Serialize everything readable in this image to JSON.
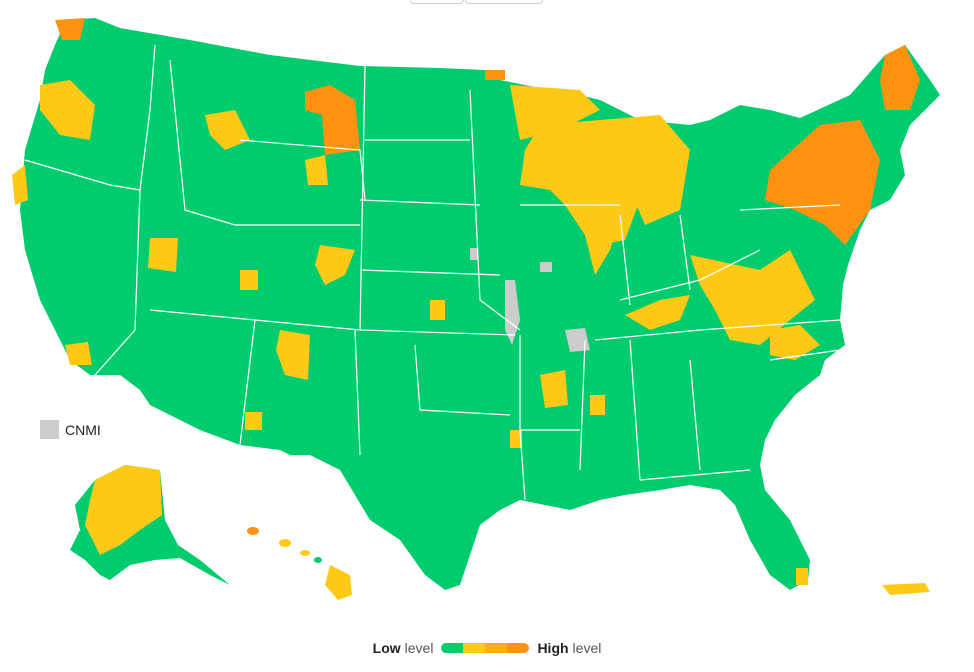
{
  "colors": {
    "low": "#00cc6e",
    "medium_low": "#ffc917",
    "medium_high": "#ffad14",
    "high": "#ff9210",
    "no_data": "#cccccc",
    "borders": "#ffffff"
  },
  "territory_label": "CNMI",
  "legend": {
    "low_word": "Low",
    "low_suffix": "level",
    "high_word": "High",
    "high_suffix": "level"
  }
}
